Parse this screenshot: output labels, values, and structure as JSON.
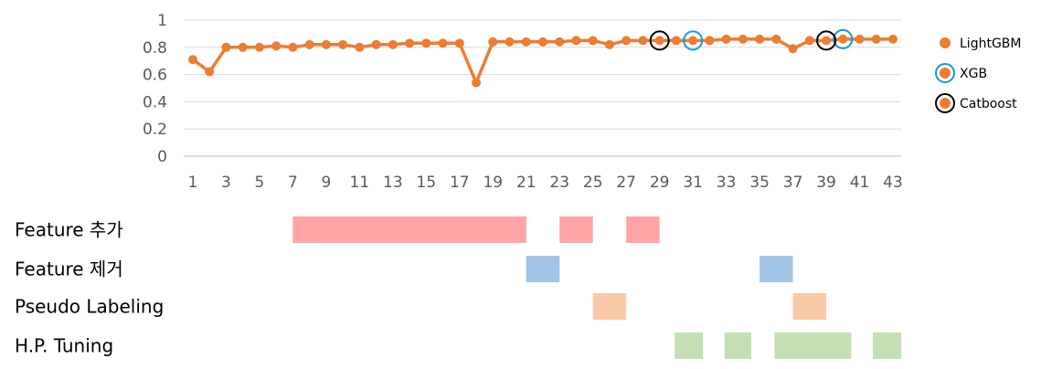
{
  "chart_data": {
    "type": "line",
    "x": [
      1,
      2,
      3,
      4,
      5,
      6,
      7,
      8,
      9,
      10,
      11,
      12,
      13,
      14,
      15,
      16,
      17,
      18,
      19,
      20,
      21,
      22,
      23,
      24,
      25,
      26,
      27,
      28,
      29,
      30,
      31,
      32,
      33,
      34,
      35,
      36,
      37,
      38,
      39,
      40,
      41,
      42,
      43
    ],
    "x_tick_labels": [
      "1",
      "3",
      "5",
      "7",
      "9",
      "11",
      "13",
      "15",
      "17",
      "19",
      "21",
      "23",
      "25",
      "27",
      "29",
      "31",
      "33",
      "35",
      "37",
      "39",
      "41",
      "43"
    ],
    "y_tick_labels": [
      "0",
      "0.2",
      "0.4",
      "0.6",
      "0.8",
      "1"
    ],
    "ylim": [
      0,
      1
    ],
    "grid": true,
    "legend_position": "right",
    "series": [
      {
        "name": "LightGBM",
        "color": "#ED7D31",
        "values": [
          0.71,
          0.62,
          0.8,
          0.8,
          0.8,
          0.81,
          0.8,
          0.82,
          0.82,
          0.82,
          0.8,
          0.82,
          0.82,
          0.83,
          0.83,
          0.83,
          0.83,
          0.54,
          0.84,
          0.84,
          0.84,
          0.84,
          0.84,
          0.85,
          0.85,
          0.82,
          0.85,
          0.85,
          0.85,
          0.85,
          0.85,
          0.85,
          0.86,
          0.86,
          0.86,
          0.86,
          0.79,
          0.85,
          0.85,
          0.86,
          0.86,
          0.86,
          0.86
        ]
      }
    ],
    "highlights": [
      {
        "name": "XGB",
        "ring_color": "#00A0E3",
        "x": [
          31,
          40
        ]
      },
      {
        "name": "Catboost",
        "ring_color": "#000000",
        "x": [
          29,
          39
        ]
      }
    ],
    "timeline": {
      "rows": [
        {
          "label": "Feature 추가",
          "color": "#FFA3A7",
          "spans": [
            [
              7,
              21
            ],
            [
              23,
              25
            ],
            [
              27,
              29
            ]
          ]
        },
        {
          "label": "Feature 제거",
          "color": "#A2C4E6",
          "spans": [
            [
              21,
              23
            ],
            [
              35,
              37
            ]
          ]
        },
        {
          "label": "Pseudo Labeling",
          "color": "#F8CAA8",
          "spans": [
            [
              25,
              27
            ],
            [
              37,
              39
            ]
          ]
        },
        {
          "label": "H.P. Tuning",
          "color": "#C4DFB4",
          "spans": [
            [
              29.9,
              31.6
            ],
            [
              32.9,
              34.5
            ],
            [
              35.9,
              40.5
            ],
            [
              41.8,
              43.5
            ]
          ]
        }
      ]
    }
  }
}
